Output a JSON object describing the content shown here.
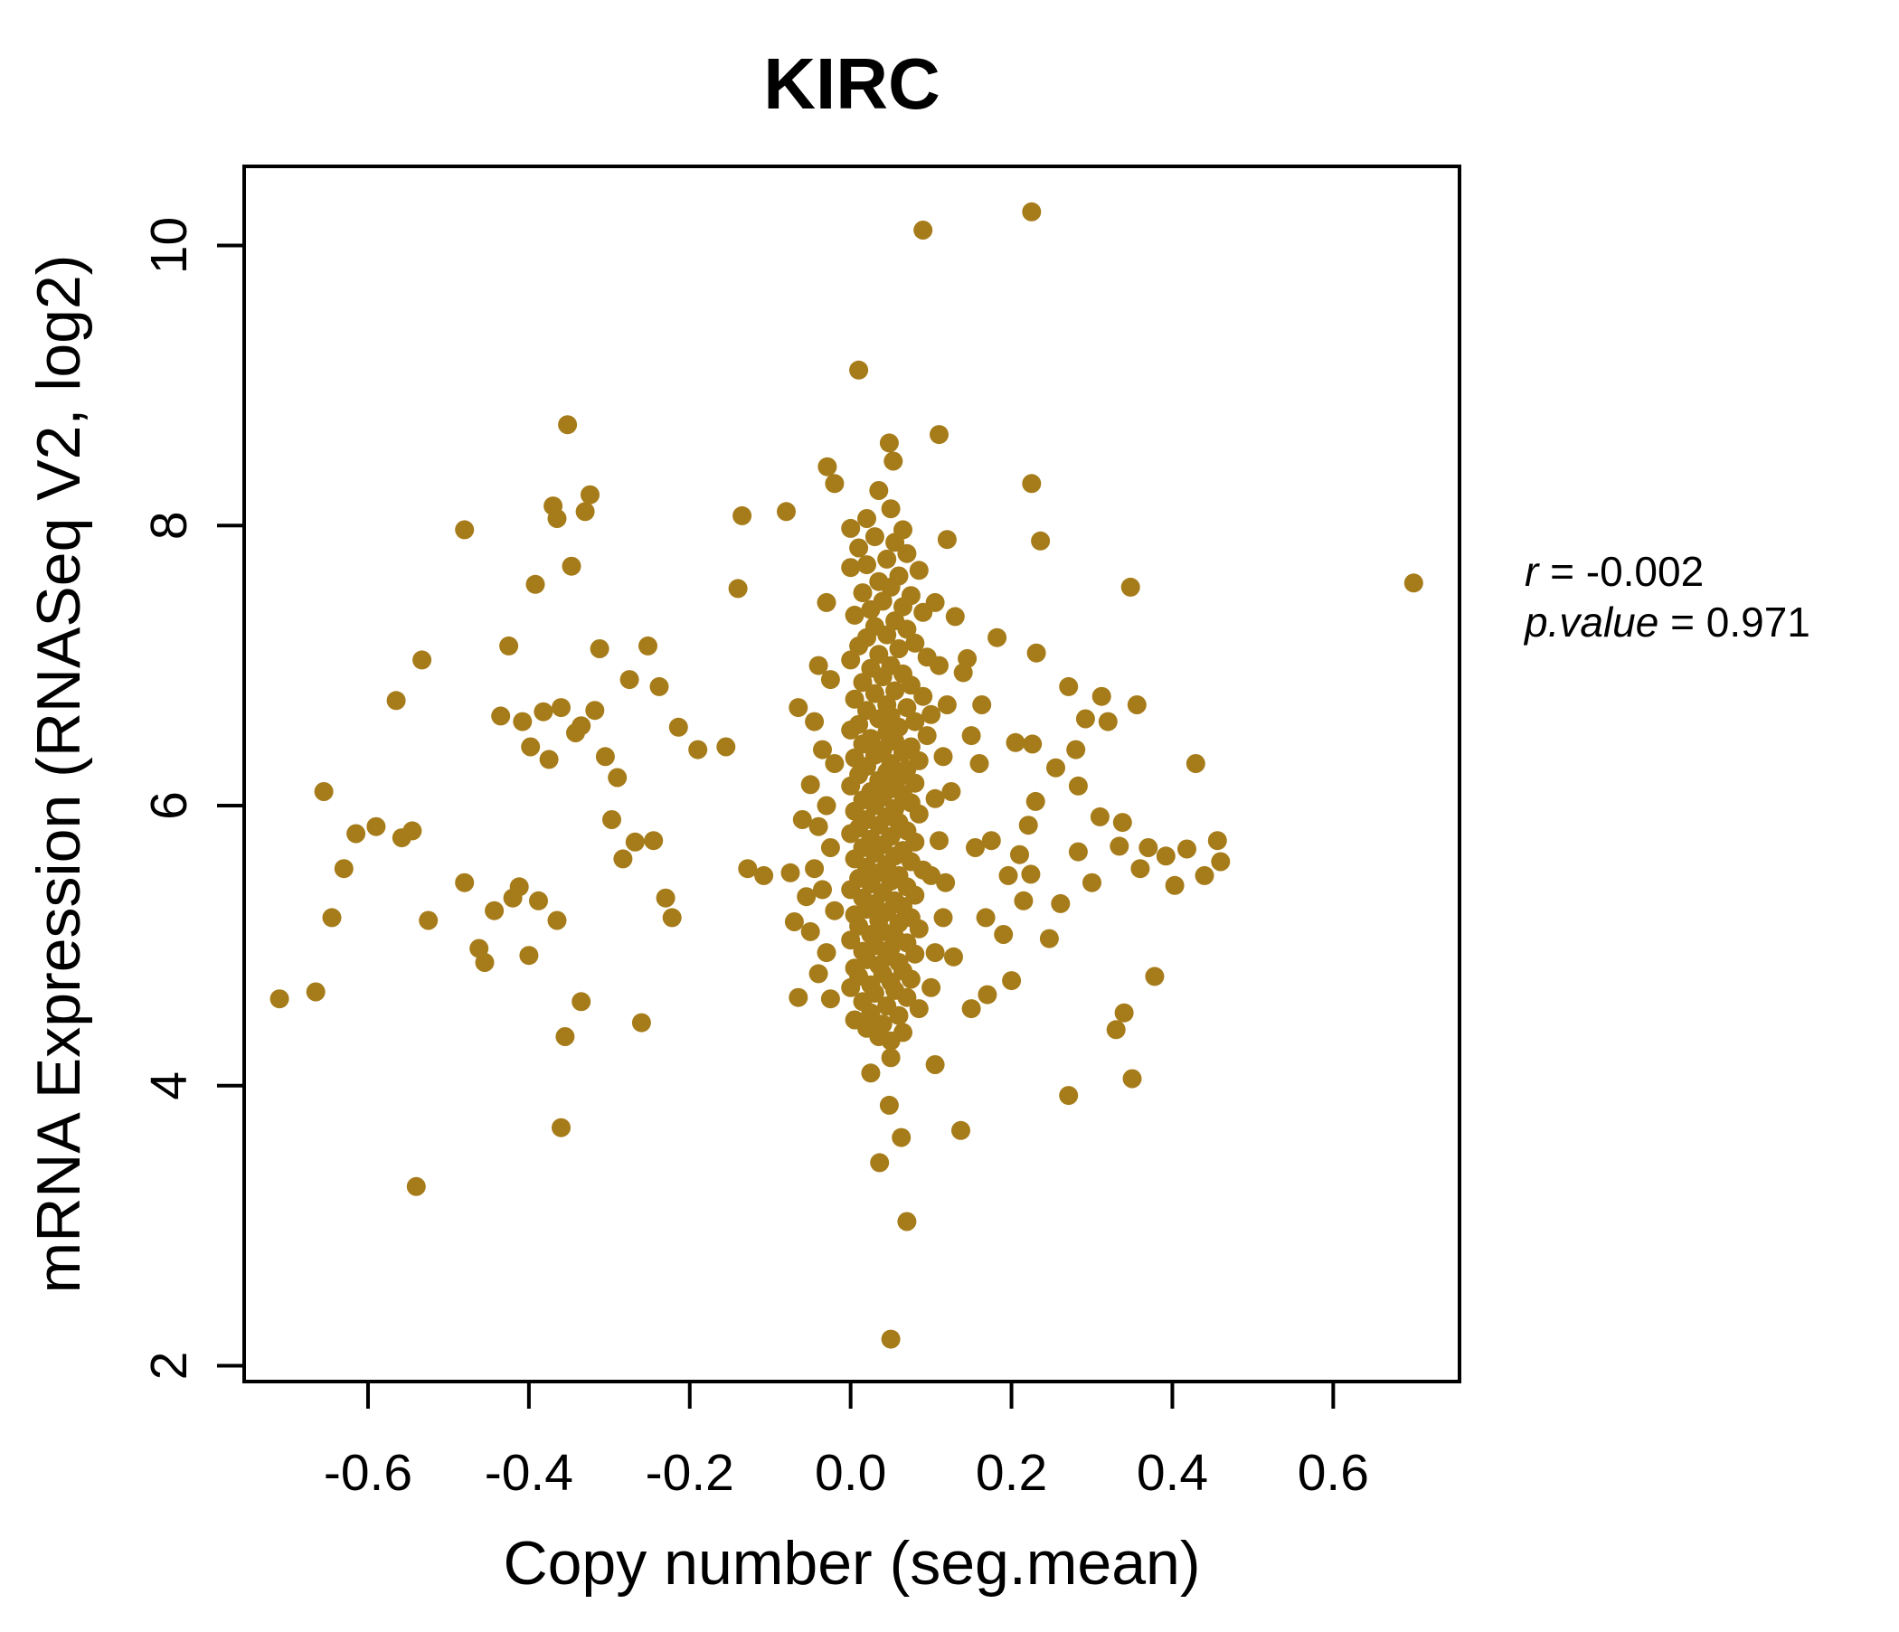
{
  "title": "KIRC",
  "colors": {
    "accent_gold": "#A67C1A",
    "axis_black": "#000000",
    "background": "#FFFFFF"
  },
  "annotation": {
    "line1_var": "r",
    "line1_rest": " = -0.002",
    "line2_var": "p.value",
    "line2_rest": " = 0.971"
  },
  "chart_data": {
    "type": "scatter",
    "title": "KIRC",
    "xlabel": "Copy number (seg.mean)",
    "ylabel": "mRNA Expression (RNASeq V2, log2)",
    "xlim": [
      -0.754,
      0.757
    ],
    "ylim": [
      1.887,
      10.565
    ],
    "xticks": [
      -0.6,
      -0.4,
      -0.2,
      0.0,
      0.2,
      0.4,
      0.6
    ],
    "xtick_labels": [
      "-0.6",
      "-0.4",
      "-0.2",
      "0.0",
      "0.2",
      "0.4",
      "0.6"
    ],
    "yticks": [
      2,
      4,
      6,
      8,
      10
    ],
    "ytick_labels": [
      "2",
      "4",
      "6",
      "8",
      "10"
    ],
    "grid": false,
    "legend": "none",
    "point_color": "#A67C1A",
    "title_color": "#A67C1A",
    "point_radius_px": 10.5,
    "stats": {
      "r": -0.002,
      "p_value": 0.971
    },
    "points": [
      [
        0.225,
        10.24
      ],
      [
        0.09,
        10.11
      ],
      [
        0.01,
        9.11
      ],
      [
        0.7,
        7.59
      ],
      [
        0.05,
        2.19
      ],
      [
        0.07,
        3.03
      ],
      [
        -0.54,
        3.28
      ],
      [
        0.036,
        3.45
      ],
      [
        -0.36,
        3.7
      ],
      [
        0.063,
        3.63
      ],
      [
        0.137,
        3.68
      ],
      [
        0.048,
        3.86
      ],
      [
        0.271,
        3.93
      ],
      [
        0.35,
        4.05
      ],
      [
        0.33,
        4.4
      ],
      [
        0.025,
        4.09
      ],
      [
        0.05,
        4.2
      ],
      [
        0.105,
        4.15
      ],
      [
        -0.355,
        4.35
      ],
      [
        -0.335,
        4.6
      ],
      [
        0.34,
        4.52
      ],
      [
        0.378,
        4.78
      ],
      [
        -0.71,
        4.62
      ],
      [
        -0.665,
        4.67
      ],
      [
        -0.655,
        6.1
      ],
      [
        -0.645,
        5.2
      ],
      [
        -0.63,
        5.55
      ],
      [
        -0.615,
        5.8
      ],
      [
        -0.59,
        5.85
      ],
      [
        -0.565,
        6.75
      ],
      [
        -0.558,
        5.77
      ],
      [
        -0.545,
        5.82
      ],
      [
        -0.525,
        5.18
      ],
      [
        -0.533,
        7.04
      ],
      [
        -0.48,
        7.97
      ],
      [
        -0.48,
        5.45
      ],
      [
        -0.462,
        4.98
      ],
      [
        -0.455,
        4.88
      ],
      [
        -0.443,
        5.25
      ],
      [
        -0.435,
        6.64
      ],
      [
        -0.425,
        7.14
      ],
      [
        -0.42,
        5.34
      ],
      [
        -0.412,
        5.42
      ],
      [
        -0.408,
        6.6
      ],
      [
        -0.4,
        4.93
      ],
      [
        -0.398,
        6.42
      ],
      [
        -0.392,
        7.58
      ],
      [
        -0.388,
        5.32
      ],
      [
        -0.382,
        6.67
      ],
      [
        -0.375,
        6.33
      ],
      [
        -0.37,
        8.14
      ],
      [
        -0.365,
        5.18
      ],
      [
        -0.36,
        6.7
      ],
      [
        -0.352,
        8.72
      ],
      [
        -0.347,
        7.71
      ],
      [
        -0.342,
        6.52
      ],
      [
        -0.335,
        6.57
      ],
      [
        -0.324,
        8.22
      ],
      [
        -0.318,
        6.68
      ],
      [
        -0.312,
        7.12
      ],
      [
        -0.305,
        6.35
      ],
      [
        -0.297,
        5.9
      ],
      [
        -0.29,
        6.2
      ],
      [
        -0.283,
        5.62
      ],
      [
        -0.275,
        6.9
      ],
      [
        -0.268,
        5.74
      ],
      [
        -0.26,
        4.45
      ],
      [
        -0.252,
        7.14
      ],
      [
        -0.245,
        5.75
      ],
      [
        -0.238,
        6.85
      ],
      [
        -0.23,
        5.34
      ],
      [
        -0.222,
        5.2
      ],
      [
        -0.214,
        6.56
      ],
      [
        -0.19,
        6.4
      ],
      [
        -0.155,
        6.42
      ],
      [
        -0.14,
        7.55
      ],
      [
        -0.135,
        8.07
      ],
      [
        -0.128,
        5.55
      ],
      [
        -0.108,
        5.5
      ],
      [
        -0.08,
        8.1
      ],
      [
        -0.075,
        5.52
      ],
      [
        -0.07,
        5.17
      ],
      [
        -0.065,
        4.63
      ],
      [
        0.236,
        7.89
      ],
      [
        0.348,
        7.56
      ],
      [
        0.231,
        7.09
      ],
      [
        0.271,
        6.85
      ],
      [
        0.312,
        6.78
      ],
      [
        0.356,
        6.72
      ],
      [
        0.292,
        6.62
      ],
      [
        0.226,
        6.44
      ],
      [
        0.28,
        6.4
      ],
      [
        0.255,
        6.27
      ],
      [
        0.283,
        6.14
      ],
      [
        0.429,
        6.3
      ],
      [
        0.23,
        6.03
      ],
      [
        0.221,
        5.86
      ],
      [
        0.338,
        5.88
      ],
      [
        0.334,
        5.71
      ],
      [
        0.283,
        5.67
      ],
      [
        0.392,
        5.64
      ],
      [
        0.418,
        5.69
      ],
      [
        0.456,
        5.75
      ],
      [
        0.403,
        5.43
      ],
      [
        0.224,
        5.51
      ],
      [
        0.261,
        5.3
      ],
      [
        0.17,
        4.65
      ],
      [
        0.14,
        6.95
      ],
      [
        0.15,
        6.5
      ],
      [
        0.155,
        5.7
      ],
      [
        0.16,
        6.3
      ],
      [
        0.168,
        5.2
      ],
      [
        0.175,
        5.75
      ],
      [
        0.182,
        7.2
      ],
      [
        0.19,
        5.08
      ],
      [
        0.196,
        5.5
      ],
      [
        0.205,
        6.45
      ],
      [
        0.21,
        5.65
      ],
      [
        0.215,
        5.32
      ],
      [
        0.247,
        5.05
      ],
      [
        0.3,
        5.45
      ],
      [
        0.31,
        5.92
      ],
      [
        0.32,
        6.6
      ],
      [
        0.36,
        5.55
      ],
      [
        0.37,
        5.7
      ],
      [
        0.44,
        5.5
      ],
      [
        0.46,
        5.6
      ],
      [
        0.13,
        7.35
      ],
      [
        0.145,
        7.05
      ],
      [
        0.12,
        6.72
      ],
      [
        0.125,
        6.1
      ],
      [
        0.118,
        5.45
      ],
      [
        0.128,
        4.92
      ],
      [
        0.15,
        4.55
      ],
      [
        0.163,
        6.72
      ],
      [
        0.2,
        4.75
      ],
      [
        0.11,
        8.65
      ],
      [
        0.048,
        8.59
      ],
      [
        0.053,
        8.46
      ],
      [
        -0.029,
        8.42
      ],
      [
        0.225,
        8.3
      ],
      [
        -0.33,
        8.1
      ],
      [
        -0.365,
        8.05
      ],
      [
        0.12,
        7.9
      ],
      [
        -0.02,
        8.3
      ],
      [
        0.035,
        8.25
      ],
      [
        0.05,
        8.12
      ],
      [
        0.02,
        8.05
      ],
      [
        0.065,
        7.97
      ],
      [
        0.0,
        7.98
      ],
      [
        0.03,
        7.92
      ],
      [
        0.055,
        7.88
      ],
      [
        0.01,
        7.84
      ],
      [
        0.07,
        7.8
      ],
      [
        0.045,
        7.76
      ],
      [
        0.02,
        7.72
      ],
      [
        0.085,
        7.68
      ],
      [
        0.0,
        7.7
      ],
      [
        0.06,
        7.64
      ],
      [
        0.035,
        7.6
      ],
      [
        0.05,
        7.56
      ],
      [
        0.015,
        7.52
      ],
      [
        0.075,
        7.5
      ],
      [
        0.04,
        7.46
      ],
      [
        0.065,
        7.42
      ],
      [
        0.025,
        7.4
      ],
      [
        0.09,
        7.38
      ],
      [
        0.005,
        7.36
      ],
      [
        0.055,
        7.32
      ],
      [
        0.03,
        7.28
      ],
      [
        0.07,
        7.26
      ],
      [
        0.045,
        7.22
      ],
      [
        0.02,
        7.2
      ],
      [
        0.08,
        7.16
      ],
      [
        0.01,
        7.14
      ],
      [
        0.06,
        7.12
      ],
      [
        0.035,
        7.08
      ],
      [
        0.095,
        7.06
      ],
      [
        0.0,
        7.04
      ],
      [
        0.05,
        7.0
      ],
      [
        0.025,
        6.98
      ],
      [
        0.065,
        6.94
      ],
      [
        0.04,
        6.92
      ],
      [
        0.015,
        6.88
      ],
      [
        0.075,
        6.86
      ],
      [
        0.055,
        6.82
      ],
      [
        0.03,
        6.8
      ],
      [
        0.09,
        6.78
      ],
      [
        0.005,
        6.76
      ],
      [
        0.045,
        6.72
      ],
      [
        0.07,
        6.7
      ],
      [
        0.02,
        6.68
      ],
      [
        0.05,
        6.64
      ],
      [
        0.035,
        6.62
      ],
      [
        0.08,
        6.6
      ],
      [
        0.01,
        6.58
      ],
      [
        0.06,
        6.56
      ],
      [
        0.0,
        6.54
      ],
      [
        0.045,
        6.52
      ],
      [
        0.095,
        6.5
      ],
      [
        0.025,
        6.48
      ],
      [
        0.055,
        6.46
      ],
      [
        0.015,
        6.44
      ],
      [
        0.075,
        6.42
      ],
      [
        0.04,
        6.4
      ],
      [
        0.065,
        6.38
      ],
      [
        0.03,
        6.36
      ],
      [
        0.005,
        6.34
      ],
      [
        0.085,
        6.32
      ],
      [
        0.05,
        6.3
      ],
      [
        0.02,
        6.28
      ],
      [
        0.07,
        6.26
      ],
      [
        0.045,
        6.24
      ],
      [
        0.01,
        6.22
      ],
      [
        0.06,
        6.2
      ],
      [
        0.035,
        6.18
      ],
      [
        0.08,
        6.16
      ],
      [
        0.0,
        6.14
      ],
      [
        0.05,
        6.12
      ],
      [
        0.025,
        6.1
      ],
      [
        0.065,
        6.08
      ],
      [
        0.04,
        6.06
      ],
      [
        0.015,
        6.04
      ],
      [
        0.075,
        6.02
      ],
      [
        0.03,
        6.0
      ],
      [
        0.055,
        5.98
      ],
      [
        0.005,
        5.96
      ],
      [
        0.085,
        5.94
      ],
      [
        0.045,
        5.92
      ],
      [
        0.02,
        5.9
      ],
      [
        0.06,
        5.88
      ],
      [
        0.035,
        5.86
      ],
      [
        0.01,
        5.84
      ],
      [
        0.07,
        5.82
      ],
      [
        0.0,
        5.8
      ],
      [
        0.05,
        5.78
      ],
      [
        0.025,
        5.76
      ],
      [
        0.08,
        5.74
      ],
      [
        0.04,
        5.72
      ],
      [
        0.015,
        5.7
      ],
      [
        0.065,
        5.68
      ],
      [
        0.03,
        5.66
      ],
      [
        0.055,
        5.64
      ],
      [
        0.005,
        5.62
      ],
      [
        0.075,
        5.6
      ],
      [
        0.045,
        5.58
      ],
      [
        0.02,
        5.56
      ],
      [
        0.09,
        5.54
      ],
      [
        0.035,
        5.52
      ],
      [
        0.06,
        5.5
      ],
      [
        0.01,
        5.48
      ],
      [
        0.05,
        5.46
      ],
      [
        0.025,
        5.44
      ],
      [
        0.07,
        5.42
      ],
      [
        0.0,
        5.4
      ],
      [
        0.04,
        5.38
      ],
      [
        0.08,
        5.36
      ],
      [
        0.015,
        5.34
      ],
      [
        0.055,
        5.32
      ],
      [
        0.03,
        5.3
      ],
      [
        0.065,
        5.28
      ],
      [
        0.02,
        5.26
      ],
      [
        0.045,
        5.24
      ],
      [
        0.005,
        5.22
      ],
      [
        0.075,
        5.2
      ],
      [
        0.035,
        5.18
      ],
      [
        0.06,
        5.16
      ],
      [
        0.01,
        5.14
      ],
      [
        0.085,
        5.12
      ],
      [
        0.04,
        5.1
      ],
      [
        0.025,
        5.08
      ],
      [
        0.055,
        5.06
      ],
      [
        0.0,
        5.04
      ],
      [
        0.07,
        5.02
      ],
      [
        0.03,
        5.0
      ],
      [
        0.05,
        4.98
      ],
      [
        0.015,
        4.96
      ],
      [
        0.08,
        4.94
      ],
      [
        0.045,
        4.92
      ],
      [
        0.02,
        4.9
      ],
      [
        0.06,
        4.88
      ],
      [
        0.035,
        4.86
      ],
      [
        0.005,
        4.84
      ],
      [
        0.065,
        4.82
      ],
      [
        0.04,
        4.8
      ],
      [
        0.01,
        4.78
      ],
      [
        0.075,
        4.76
      ],
      [
        0.05,
        4.74
      ],
      [
        0.025,
        4.72
      ],
      [
        0.0,
        4.7
      ],
      [
        0.055,
        4.68
      ],
      [
        0.03,
        4.66
      ],
      [
        0.07,
        4.63
      ],
      [
        0.015,
        4.6
      ],
      [
        0.045,
        4.57
      ],
      [
        0.085,
        4.55
      ],
      [
        0.025,
        4.52
      ],
      [
        0.06,
        4.5
      ],
      [
        0.005,
        4.47
      ],
      [
        0.04,
        4.44
      ],
      [
        0.02,
        4.41
      ],
      [
        0.065,
        4.38
      ],
      [
        0.035,
        4.35
      ],
      [
        0.05,
        4.32
      ],
      [
        -0.03,
        7.45
      ],
      [
        -0.04,
        7.0
      ],
      [
        -0.025,
        6.9
      ],
      [
        -0.045,
        6.6
      ],
      [
        -0.035,
        6.4
      ],
      [
        -0.02,
        6.3
      ],
      [
        -0.05,
        6.15
      ],
      [
        -0.03,
        6.0
      ],
      [
        -0.04,
        5.85
      ],
      [
        -0.025,
        5.7
      ],
      [
        -0.045,
        5.55
      ],
      [
        -0.035,
        5.4
      ],
      [
        -0.02,
        5.25
      ],
      [
        -0.05,
        5.1
      ],
      [
        -0.03,
        4.95
      ],
      [
        -0.04,
        4.8
      ],
      [
        -0.025,
        4.62
      ],
      [
        -0.06,
        5.9
      ],
      [
        -0.055,
        5.35
      ],
      [
        -0.065,
        6.7
      ],
      [
        0.105,
        7.45
      ],
      [
        0.11,
        7.0
      ],
      [
        0.1,
        6.65
      ],
      [
        0.115,
        6.35
      ],
      [
        0.105,
        6.05
      ],
      [
        0.11,
        5.75
      ],
      [
        0.1,
        5.5
      ],
      [
        0.115,
        5.2
      ],
      [
        0.105,
        4.95
      ],
      [
        0.1,
        4.7
      ]
    ]
  }
}
